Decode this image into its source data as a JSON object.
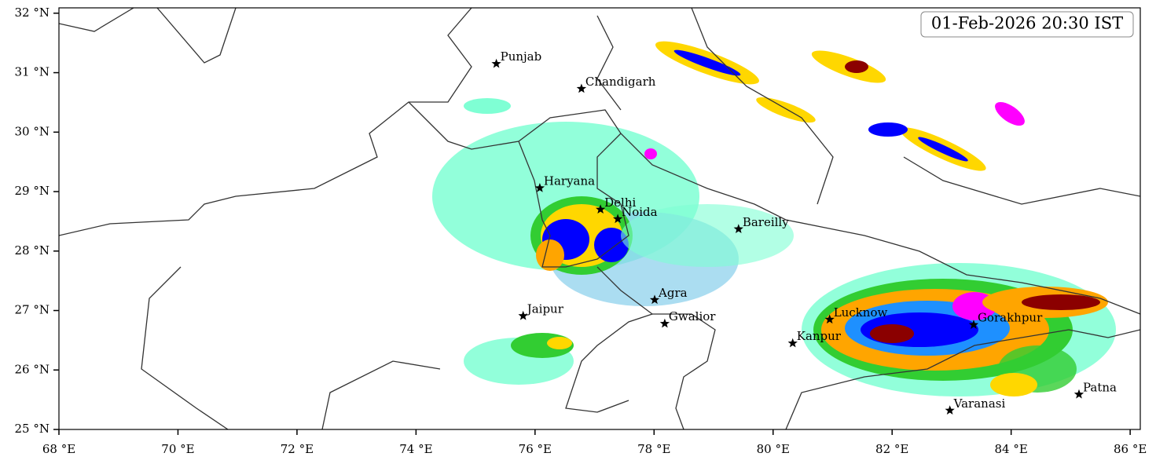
{
  "map": {
    "timestamp": "01-Feb-2026 20:30 IST",
    "xlim": [
      68,
      86.17
    ],
    "ylim": [
      25,
      32.09
    ],
    "xticks": [
      {
        "value": 68,
        "label": "68 °E"
      },
      {
        "value": 70,
        "label": "70 °E"
      },
      {
        "value": 72,
        "label": "72 °E"
      },
      {
        "value": 74,
        "label": "74 °E"
      },
      {
        "value": 76,
        "label": "76 °E"
      },
      {
        "value": 78,
        "label": "78 °E"
      },
      {
        "value": 80,
        "label": "80 °E"
      },
      {
        "value": 82,
        "label": "82 °E"
      },
      {
        "value": 84,
        "label": "84 °E"
      },
      {
        "value": 86,
        "label": "86 °E"
      }
    ],
    "yticks": [
      {
        "value": 25,
        "label": "25 °N"
      },
      {
        "value": 26,
        "label": "26 °N"
      },
      {
        "value": 27,
        "label": "27 °N"
      },
      {
        "value": 28,
        "label": "28 °N"
      },
      {
        "value": 29,
        "label": "29 °N"
      },
      {
        "value": 30,
        "label": "30 °N"
      },
      {
        "value": 31,
        "label": "31 °N"
      },
      {
        "value": 32,
        "label": "32 °N"
      }
    ],
    "places": [
      {
        "name": "Punjab",
        "lon": 75.35,
        "lat": 31.15
      },
      {
        "name": "Chandigarh",
        "lon": 76.78,
        "lat": 30.73
      },
      {
        "name": "Haryana",
        "lon": 76.08,
        "lat": 29.06
      },
      {
        "name": "Delhi",
        "lon": 77.1,
        "lat": 28.7
      },
      {
        "name": "Noida",
        "lon": 77.39,
        "lat": 28.54
      },
      {
        "name": "Bareilly",
        "lon": 79.42,
        "lat": 28.37
      },
      {
        "name": "Agra",
        "lon": 78.01,
        "lat": 27.18
      },
      {
        "name": "Jaipur",
        "lon": 75.8,
        "lat": 26.91
      },
      {
        "name": "Gwalior",
        "lon": 78.18,
        "lat": 26.78
      },
      {
        "name": "Lucknow",
        "lon": 80.95,
        "lat": 26.85
      },
      {
        "name": "Kanpur",
        "lon": 80.33,
        "lat": 26.45
      },
      {
        "name": "Gorakhpur",
        "lon": 83.37,
        "lat": 26.76
      },
      {
        "name": "Varanasi",
        "lon": 82.97,
        "lat": 25.32
      },
      {
        "name": "Patna",
        "lon": 85.14,
        "lat": 25.59
      }
    ]
  }
}
